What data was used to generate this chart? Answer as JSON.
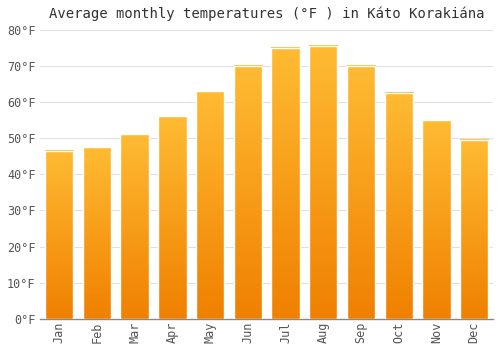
{
  "title": "Average monthly temperatures (°F ) in Káto Korakiána",
  "months": [
    "Jan",
    "Feb",
    "Mar",
    "Apr",
    "May",
    "Jun",
    "Jul",
    "Aug",
    "Sep",
    "Oct",
    "Nov",
    "Dec"
  ],
  "values": [
    46.5,
    47.5,
    51,
    56,
    63,
    70,
    75,
    75.5,
    70,
    62.5,
    55,
    49.5
  ],
  "bar_color_top": "#FFBB33",
  "bar_color_bottom": "#F08000",
  "ylim": [
    0,
    80
  ],
  "yticks": [
    0,
    10,
    20,
    30,
    40,
    50,
    60,
    70,
    80
  ],
  "ytick_labels": [
    "0°F",
    "10°F",
    "20°F",
    "30°F",
    "40°F",
    "50°F",
    "60°F",
    "70°F",
    "80°F"
  ],
  "bg_color": "#FFFFFF",
  "grid_color": "#E0E0E0",
  "title_fontsize": 10,
  "tick_fontsize": 8.5
}
